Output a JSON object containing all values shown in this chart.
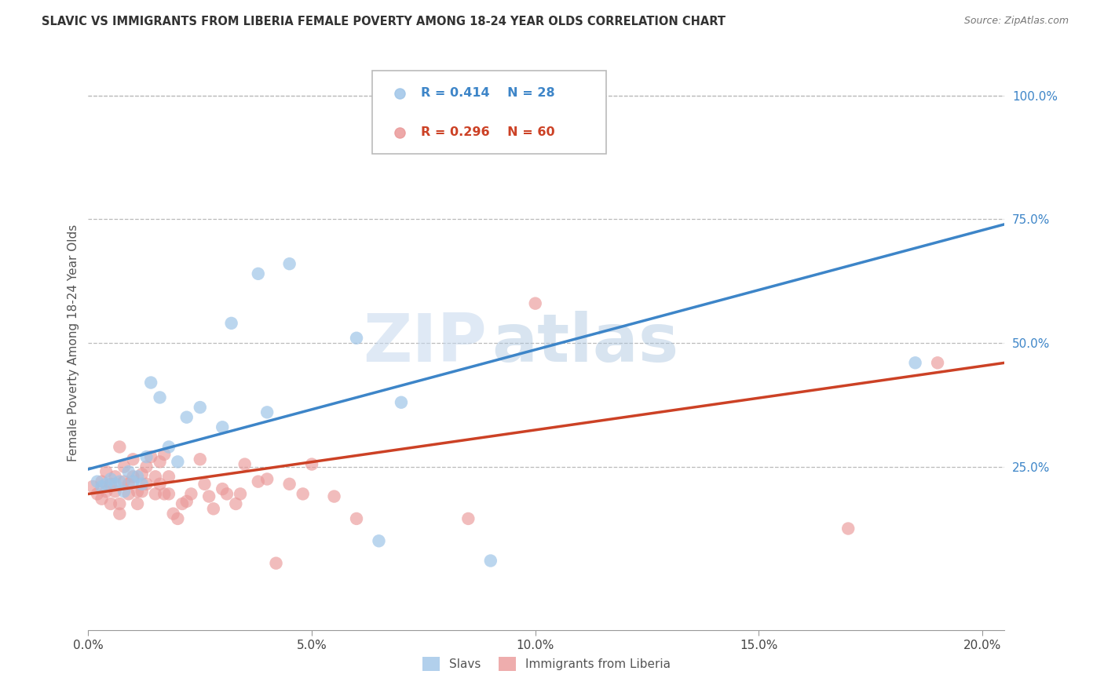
{
  "title": "SLAVIC VS IMMIGRANTS FROM LIBERIA FEMALE POVERTY AMONG 18-24 YEAR OLDS CORRELATION CHART",
  "source": "Source: ZipAtlas.com",
  "ylabel_text": "Female Poverty Among 18-24 Year Olds",
  "xmin": 0.0,
  "xmax": 0.205,
  "ymin": -0.08,
  "ymax": 1.08,
  "xtick_labels": [
    "0.0%",
    "5.0%",
    "10.0%",
    "15.0%",
    "20.0%"
  ],
  "xtick_vals": [
    0.0,
    0.05,
    0.1,
    0.15,
    0.2
  ],
  "ytick_labels": [
    "25.0%",
    "50.0%",
    "75.0%",
    "100.0%"
  ],
  "ytick_vals": [
    0.25,
    0.5,
    0.75,
    1.0
  ],
  "slavs_color": "#9fc5e8",
  "liberia_color": "#ea9999",
  "slavs_line_color": "#3d85c8",
  "liberia_line_color": "#cc4125",
  "slavs_R": "0.414",
  "slavs_N": "28",
  "liberia_R": "0.296",
  "liberia_N": "60",
  "legend_label_slavs": "Slavs",
  "legend_label_liberia": "Immigrants from Liberia",
  "watermark_1": "ZIP",
  "watermark_2": "atlas",
  "slavs_x": [
    0.002,
    0.003,
    0.004,
    0.005,
    0.006,
    0.007,
    0.008,
    0.009,
    0.01,
    0.011,
    0.012,
    0.013,
    0.014,
    0.016,
    0.018,
    0.02,
    0.022,
    0.025,
    0.03,
    0.032,
    0.038,
    0.04,
    0.045,
    0.06,
    0.065,
    0.07,
    0.09,
    0.185
  ],
  "slavs_y": [
    0.22,
    0.21,
    0.215,
    0.225,
    0.215,
    0.22,
    0.2,
    0.24,
    0.22,
    0.23,
    0.215,
    0.27,
    0.42,
    0.39,
    0.29,
    0.26,
    0.35,
    0.37,
    0.33,
    0.54,
    0.64,
    0.36,
    0.66,
    0.51,
    0.1,
    0.38,
    0.06,
    0.46
  ],
  "liberia_x": [
    0.001,
    0.002,
    0.003,
    0.003,
    0.004,
    0.004,
    0.005,
    0.005,
    0.006,
    0.006,
    0.007,
    0.007,
    0.007,
    0.008,
    0.008,
    0.009,
    0.009,
    0.01,
    0.01,
    0.011,
    0.011,
    0.012,
    0.012,
    0.013,
    0.013,
    0.014,
    0.015,
    0.015,
    0.016,
    0.016,
    0.017,
    0.017,
    0.018,
    0.018,
    0.019,
    0.02,
    0.021,
    0.022,
    0.023,
    0.025,
    0.026,
    0.027,
    0.028,
    0.03,
    0.031,
    0.033,
    0.034,
    0.035,
    0.038,
    0.04,
    0.042,
    0.045,
    0.048,
    0.05,
    0.055,
    0.06,
    0.085,
    0.1,
    0.17,
    0.19
  ],
  "liberia_y": [
    0.21,
    0.195,
    0.22,
    0.185,
    0.2,
    0.24,
    0.215,
    0.175,
    0.23,
    0.2,
    0.29,
    0.175,
    0.155,
    0.25,
    0.22,
    0.215,
    0.195,
    0.23,
    0.265,
    0.2,
    0.175,
    0.2,
    0.235,
    0.25,
    0.215,
    0.27,
    0.23,
    0.195,
    0.215,
    0.26,
    0.195,
    0.275,
    0.195,
    0.23,
    0.155,
    0.145,
    0.175,
    0.18,
    0.195,
    0.265,
    0.215,
    0.19,
    0.165,
    0.205,
    0.195,
    0.175,
    0.195,
    0.255,
    0.22,
    0.225,
    0.055,
    0.215,
    0.195,
    0.255,
    0.19,
    0.145,
    0.145,
    0.58,
    0.125,
    0.46
  ],
  "line_slavs_x0": 0.0,
  "line_slavs_y0": 0.245,
  "line_slavs_x1": 0.205,
  "line_slavs_y1": 0.74,
  "line_liberia_x0": 0.0,
  "line_liberia_y0": 0.195,
  "line_liberia_x1": 0.205,
  "line_liberia_y1": 0.46
}
